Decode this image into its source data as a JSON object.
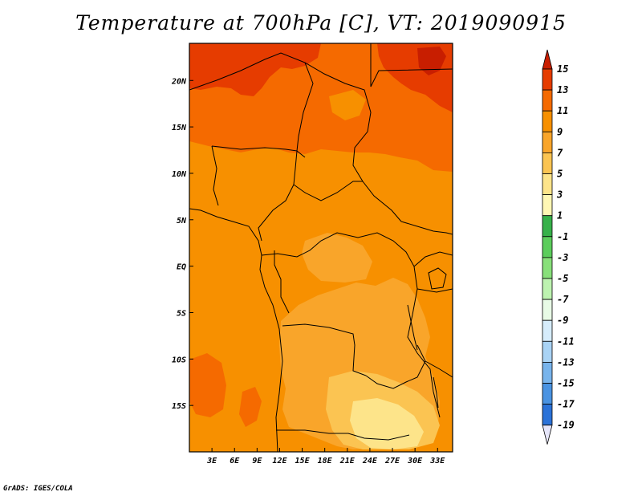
{
  "title": "Temperature at 700hPa [C], VT: 2019090915",
  "credit": "GrADS: IGES/COLA",
  "map": {
    "variable": "Temperature at 700hPa",
    "units": "C",
    "valid_time": "2019090915",
    "lon_range": [
      0,
      35
    ],
    "lat_range": [
      -20,
      24
    ],
    "lon_ticks": [
      {
        "value": 3,
        "label": "3E"
      },
      {
        "value": 6,
        "label": "6E"
      },
      {
        "value": 9,
        "label": "9E"
      },
      {
        "value": 12,
        "label": "12E"
      },
      {
        "value": 15,
        "label": "15E"
      },
      {
        "value": 18,
        "label": "18E"
      },
      {
        "value": 21,
        "label": "21E"
      },
      {
        "value": 24,
        "label": "24E"
      },
      {
        "value": 27,
        "label": "27E"
      },
      {
        "value": 30,
        "label": "30E"
      },
      {
        "value": 33,
        "label": "33E"
      }
    ],
    "lat_ticks": [
      {
        "value": 20,
        "label": "20N"
      },
      {
        "value": 15,
        "label": "15N"
      },
      {
        "value": 10,
        "label": "10N"
      },
      {
        "value": 5,
        "label": "5N"
      },
      {
        "value": 0,
        "label": "EQ"
      },
      {
        "value": -5,
        "label": "5S"
      },
      {
        "value": -10,
        "label": "10S"
      },
      {
        "value": -15,
        "label": "15S"
      }
    ]
  },
  "colorbar": {
    "levels": [
      "15",
      "13",
      "11",
      "9",
      "7",
      "5",
      "3",
      "1",
      "-1",
      "-3",
      "-5",
      "-7",
      "-9",
      "-11",
      "-13",
      "-15",
      "-17",
      "-19"
    ],
    "colors": [
      "#c81e00",
      "#e63c00",
      "#f56a00",
      "#f79000",
      "#f9a52a",
      "#fbc452",
      "#fde48a",
      "#fff7b4",
      "#37b14a",
      "#5ccd5c",
      "#88e07a",
      "#bdf3b0",
      "#e8fbe6",
      "#d6ecfb",
      "#a9d3f5",
      "#78b4ec",
      "#4a93e2",
      "#2b72d8",
      "#1550c6",
      "#0a2fa6",
      "#05197d",
      "#e6e6fa"
    ]
  }
}
